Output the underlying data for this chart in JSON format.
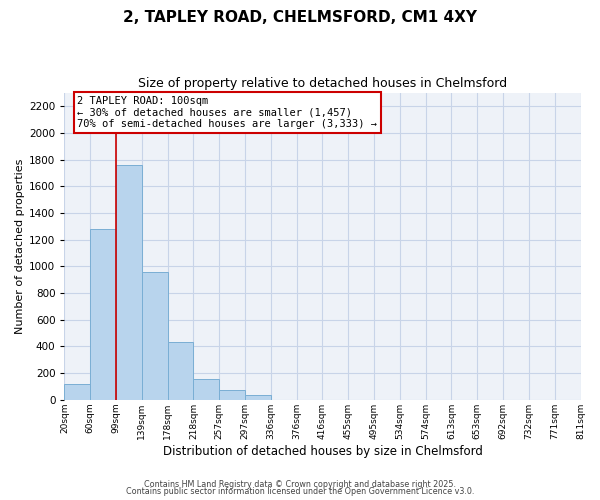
{
  "title": "2, TAPLEY ROAD, CHELMSFORD, CM1 4XY",
  "subtitle": "Size of property relative to detached houses in Chelmsford",
  "xlabel": "Distribution of detached houses by size in Chelmsford",
  "ylabel": "Number of detached properties",
  "bin_labels": [
    "20sqm",
    "60sqm",
    "99sqm",
    "139sqm",
    "178sqm",
    "218sqm",
    "257sqm",
    "297sqm",
    "336sqm",
    "376sqm",
    "416sqm",
    "455sqm",
    "495sqm",
    "534sqm",
    "574sqm",
    "613sqm",
    "653sqm",
    "692sqm",
    "732sqm",
    "771sqm",
    "811sqm"
  ],
  "bar_values": [
    115,
    1280,
    1760,
    960,
    430,
    155,
    75,
    35,
    0,
    0,
    0,
    0,
    0,
    0,
    0,
    0,
    0,
    0,
    0,
    0
  ],
  "bar_color": "#b8d4ed",
  "bar_edge_color": "#7aaed4",
  "grid_color": "#c8d4e8",
  "bg_color": "#eef2f8",
  "vline_x_index": 2,
  "vline_color": "#cc0000",
  "annotation_text_line1": "2 TAPLEY ROAD: 100sqm",
  "annotation_text_line2": "← 30% of detached houses are smaller (1,457)",
  "annotation_text_line3": "70% of semi-detached houses are larger (3,333) →",
  "annotation_box_color": "#cc0000",
  "ylim": [
    0,
    2300
  ],
  "yticks": [
    0,
    200,
    400,
    600,
    800,
    1000,
    1200,
    1400,
    1600,
    1800,
    2000,
    2200
  ],
  "footer_line1": "Contains HM Land Registry data © Crown copyright and database right 2025.",
  "footer_line2": "Contains public sector information licensed under the Open Government Licence v3.0.",
  "figsize": [
    6.0,
    5.0
  ],
  "dpi": 100
}
